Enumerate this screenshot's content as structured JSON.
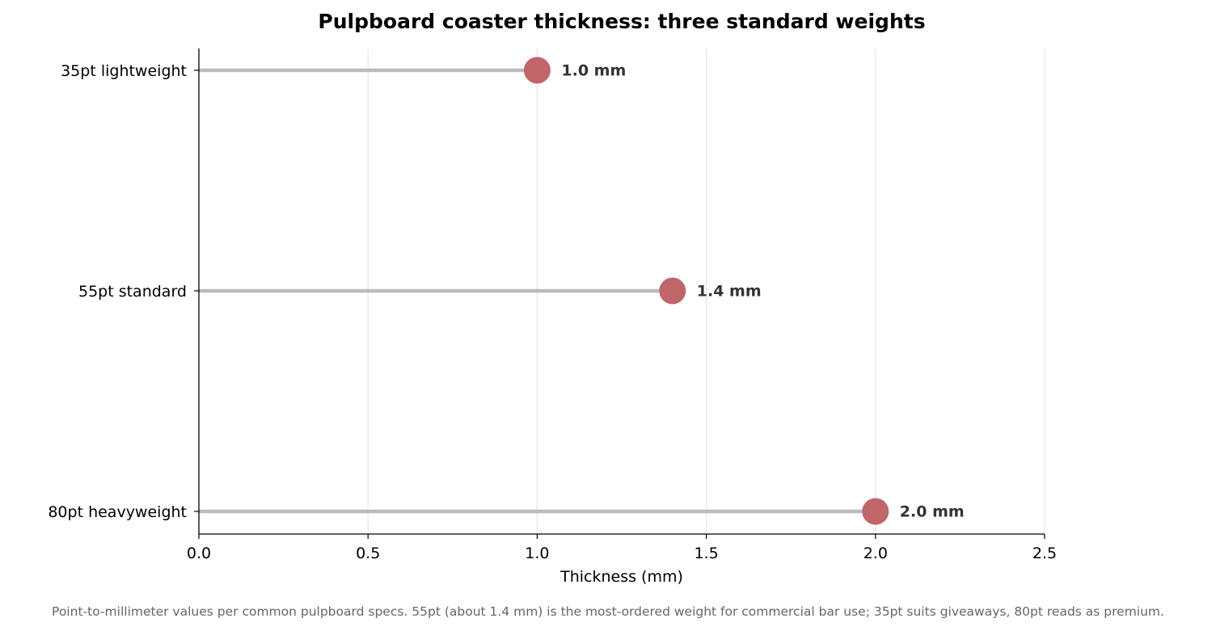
{
  "chart_data": {
    "type": "lollipop",
    "title": "Pulpboard coaster thickness: three standard weights",
    "xlabel": "Thickness (mm)",
    "ylabel": "",
    "xlim": [
      0,
      2.5
    ],
    "xticks": [
      "0.0",
      "0.5",
      "1.0",
      "1.5",
      "2.0",
      "2.5"
    ],
    "orientation": "horizontal",
    "grid": "vertical gridlines on",
    "categories": [
      "35pt lightweight",
      "55pt standard",
      "80pt heavyweight"
    ],
    "values": [
      1.0,
      1.4,
      2.0
    ],
    "value_labels": [
      "1.0 mm",
      "1.4 mm",
      "2.0 mm"
    ],
    "colors": {
      "marker": "#c0656a",
      "stem": "#bbbbbb",
      "grid": "#e6e6e6",
      "axis": "#000000",
      "value_text": "#333333"
    }
  },
  "footnote": "Point-to-millimeter values per common pulpboard specs. 55pt (about 1.4 mm) is the most-ordered weight for commercial bar use; 35pt suits giveaways, 80pt reads as premium."
}
